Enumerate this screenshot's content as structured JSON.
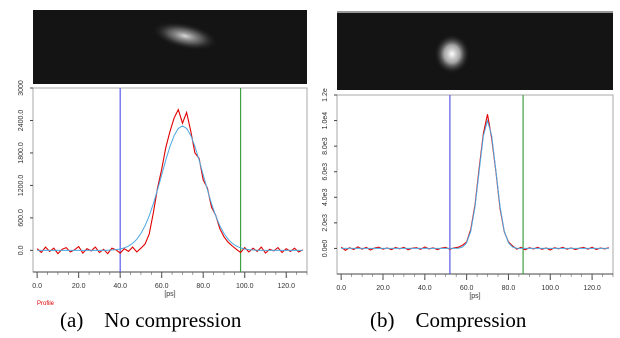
{
  "chart_data": [
    {
      "type": "line",
      "caption": "(a)    No compression",
      "note": "Profile",
      "xlabel": "[ps]",
      "x": [
        0,
        2,
        4,
        6,
        8,
        10,
        12,
        14,
        16,
        18,
        20,
        22,
        24,
        26,
        28,
        30,
        32,
        34,
        36,
        38,
        40,
        42,
        44,
        46,
        48,
        50,
        52,
        54,
        56,
        58,
        60,
        62,
        64,
        66,
        68,
        70,
        72,
        74,
        76,
        78,
        80,
        82,
        84,
        86,
        88,
        90,
        92,
        94,
        96,
        98,
        100,
        102,
        104,
        106,
        108,
        110,
        112,
        114,
        116,
        118,
        120,
        122,
        124,
        126,
        128
      ],
      "series": [
        {
          "color": "#e00000",
          "values": [
            30,
            -40,
            60,
            -20,
            40,
            -60,
            20,
            50,
            -30,
            10,
            70,
            -50,
            30,
            -10,
            60,
            -40,
            20,
            -60,
            40,
            10,
            -50,
            30,
            -20,
            60,
            -30,
            40,
            120,
            300,
            700,
            1150,
            1500,
            1900,
            2200,
            2450,
            2600,
            2350,
            2550,
            2200,
            1800,
            1700,
            1300,
            1150,
            800,
            650,
            400,
            250,
            150,
            80,
            20,
            -40,
            50,
            -30,
            40,
            -20,
            60,
            -50,
            20,
            -10,
            50,
            -40,
            30,
            -20,
            40,
            -30,
            10
          ]
        },
        {
          "color": "#4aa8e0",
          "values": [
            0,
            0,
            0,
            0,
            0,
            0,
            0,
            0,
            0,
            0,
            0,
            0,
            0,
            0,
            0,
            0,
            0,
            3,
            6,
            14,
            25,
            46,
            78,
            129,
            205,
            311,
            455,
            639,
            863,
            1119,
            1395,
            1670,
            1921,
            2123,
            2254,
            2300,
            2254,
            2123,
            1921,
            1670,
            1395,
            1119,
            863,
            639,
            455,
            311,
            205,
            129,
            78,
            46,
            25,
            14,
            6,
            3,
            0,
            0,
            0,
            0,
            0,
            0,
            0,
            0,
            0,
            0,
            0
          ]
        }
      ],
      "markers": [
        {
          "color": "#5a5ae6",
          "x": 40
        },
        {
          "color": "#3fa040",
          "x": 98
        }
      ],
      "xlim": [
        -2,
        130
      ],
      "ylim": [
        -400,
        3000
      ],
      "xticks": [
        {
          "value": 0,
          "label": "0.0"
        },
        {
          "value": 20,
          "label": "20.0"
        },
        {
          "value": 40,
          "label": "40.0"
        },
        {
          "value": 60,
          "label": "60.0"
        },
        {
          "value": 80,
          "label": "80.0"
        },
        {
          "value": 100,
          "label": "100.0"
        },
        {
          "value": 120,
          "label": "120.0"
        }
      ],
      "yticks": [
        {
          "value": 0,
          "label": "0.0"
        },
        {
          "value": 600,
          "label": "600.0"
        },
        {
          "value": 1200,
          "label": "1200.0"
        },
        {
          "value": 1800,
          "label": "1800.0"
        },
        {
          "value": 2400,
          "label": "2400.0"
        },
        3000
      ]
    },
    {
      "type": "line",
      "caption": "(b)    Compression",
      "xlabel": "[ps]",
      "x": [
        0,
        2,
        4,
        6,
        8,
        10,
        12,
        14,
        16,
        18,
        20,
        22,
        24,
        26,
        28,
        30,
        32,
        34,
        36,
        38,
        40,
        42,
        44,
        46,
        48,
        50,
        52,
        54,
        56,
        58,
        60,
        62,
        64,
        66,
        68,
        70,
        72,
        74,
        76,
        78,
        80,
        82,
        84,
        86,
        88,
        90,
        92,
        94,
        96,
        98,
        100,
        102,
        104,
        106,
        108,
        110,
        112,
        114,
        116,
        118,
        120,
        122,
        124,
        126,
        128
      ],
      "series": [
        {
          "color": "#e00000",
          "values": [
            100,
            -150,
            50,
            -80,
            120,
            -50,
            80,
            -120,
            30,
            100,
            -60,
            40,
            -100,
            70,
            -30,
            90,
            -110,
            20,
            60,
            -70,
            110,
            -40,
            50,
            -90,
            30,
            80,
            -60,
            40,
            100,
            250,
            500,
            1500,
            3400,
            6300,
            9000,
            10500,
            8600,
            6000,
            3100,
            1300,
            500,
            200,
            -50,
            80,
            -100,
            60,
            -40,
            90,
            -70,
            30,
            -120,
            60,
            -30,
            80,
            -60,
            40,
            -90,
            20,
            70,
            -50,
            100,
            -80,
            30,
            -40,
            60
          ]
        },
        {
          "color": "#4aa8e0",
          "values": [
            0,
            0,
            0,
            0,
            0,
            0,
            0,
            0,
            0,
            0,
            0,
            0,
            0,
            0,
            0,
            0,
            0,
            0,
            0,
            0,
            0,
            0,
            0,
            0,
            0,
            0,
            0,
            0,
            20,
            110,
            440,
            1350,
            3250,
            6070,
            8820,
            10000,
            8820,
            6070,
            3250,
            1350,
            440,
            110,
            20,
            0,
            0,
            0,
            0,
            0,
            0,
            0,
            0,
            0,
            0,
            0,
            0,
            0,
            0,
            0,
            0,
            0,
            0,
            0,
            0,
            0,
            0
          ]
        }
      ],
      "markers": [
        {
          "color": "#5a5ae6",
          "x": 52
        },
        {
          "color": "#3fa040",
          "x": 87
        }
      ],
      "xlim": [
        -2,
        130
      ],
      "ylim": [
        -2000,
        12000
      ],
      "xticks": [
        {
          "value": 0,
          "label": "0.0"
        },
        {
          "value": 20,
          "label": "20.0"
        },
        {
          "value": 40,
          "label": "40.0"
        },
        {
          "value": 60,
          "label": "60.0"
        },
        {
          "value": 80,
          "label": "80.0"
        },
        {
          "value": 100,
          "label": "100.0"
        },
        {
          "value": 120,
          "label": "120.0"
        }
      ],
      "yticks": [
        {
          "value": 0,
          "label": "0.0e0"
        },
        {
          "value": 2000,
          "label": "2.0e3"
        },
        {
          "value": 4000,
          "label": "4.0e3"
        },
        {
          "value": 6000,
          "label": "6.0e3"
        },
        {
          "value": 8000,
          "label": "8.0e3"
        },
        {
          "value": 10000,
          "label": "1.0e4"
        },
        {
          "value": 12000,
          "label": "1.2e"
        }
      ]
    }
  ]
}
